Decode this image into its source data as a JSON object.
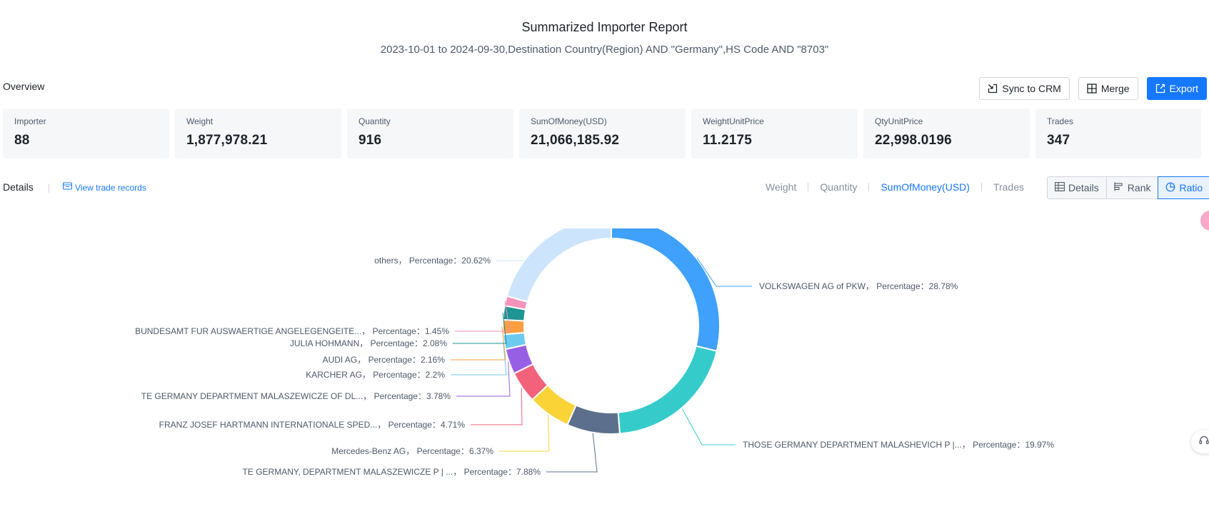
{
  "header": {
    "title": "Summarized Importer Report",
    "subtitle": "2023-10-01 to 2024-09-30,Destination Country(Region) AND \"Germany\",HS Code AND \"8703\""
  },
  "overview": {
    "label": "Overview",
    "buttons": {
      "sync": "Sync to CRM",
      "merge": "Merge",
      "export": "Export"
    },
    "cards": [
      {
        "label": "Importer",
        "value": "88"
      },
      {
        "label": "Weight",
        "value": "1,877,978.21"
      },
      {
        "label": "Quantity",
        "value": "916"
      },
      {
        "label": "SumOfMoney(USD)",
        "value": "21,066,185.92"
      },
      {
        "label": "WeightUnitPrice",
        "value": "11.2175"
      },
      {
        "label": "QtyUnitPrice",
        "value": "22,998.0196"
      },
      {
        "label": "Trades",
        "value": "347"
      }
    ]
  },
  "details": {
    "label": "Details",
    "view_link": "View trade records",
    "metric_tabs": [
      "Weight",
      "Quantity",
      "SumOfMoney(USD)",
      "Trades"
    ],
    "active_metric": "SumOfMoney(USD)",
    "view_buttons": [
      "Details",
      "Rank",
      "Ratio"
    ],
    "active_view": "Ratio"
  },
  "chart_data": {
    "type": "pie",
    "donut": true,
    "label_template": "{name}， Percentage：{value}%",
    "slices": [
      {
        "name": "VOLKSWAGEN AG of PKW",
        "value": 28.78,
        "color": "#3fa1fb"
      },
      {
        "name": "THOSE GERMANY DEPARTMENT MALASHEVICH P |...",
        "value": 19.97,
        "color": "#36cbcb"
      },
      {
        "name": "TE GERMANY, DEPARTMENT MALASZEWICZE P | ...",
        "value": 7.88,
        "color": "#5c6f8c"
      },
      {
        "name": "Mercedes-Benz AG",
        "value": 6.37,
        "color": "#fad337"
      },
      {
        "name": "FRANZ JOSEF HARTMANN INTERNATIONALE SPED...",
        "value": 4.71,
        "color": "#f2637b"
      },
      {
        "name": "TE GERMANY DEPARTMENT MALASZEWICZE OF DL...",
        "value": 3.78,
        "color": "#975fe4"
      },
      {
        "name": "KARCHER AG",
        "value": 2.2,
        "color": "#6ccaee"
      },
      {
        "name": "AUDI AG",
        "value": 2.16,
        "color": "#fb9e3f"
      },
      {
        "name": "JULIA HOHMANN",
        "value": 2.08,
        "color": "#1e9493"
      },
      {
        "name": "BUNDESAMT FUR AUSWAERTIGE ANGELEGENGEITE...",
        "value": 1.45,
        "color": "#f493bc"
      },
      {
        "name": "others",
        "value": 20.62,
        "color": "#cce4fc"
      }
    ]
  }
}
